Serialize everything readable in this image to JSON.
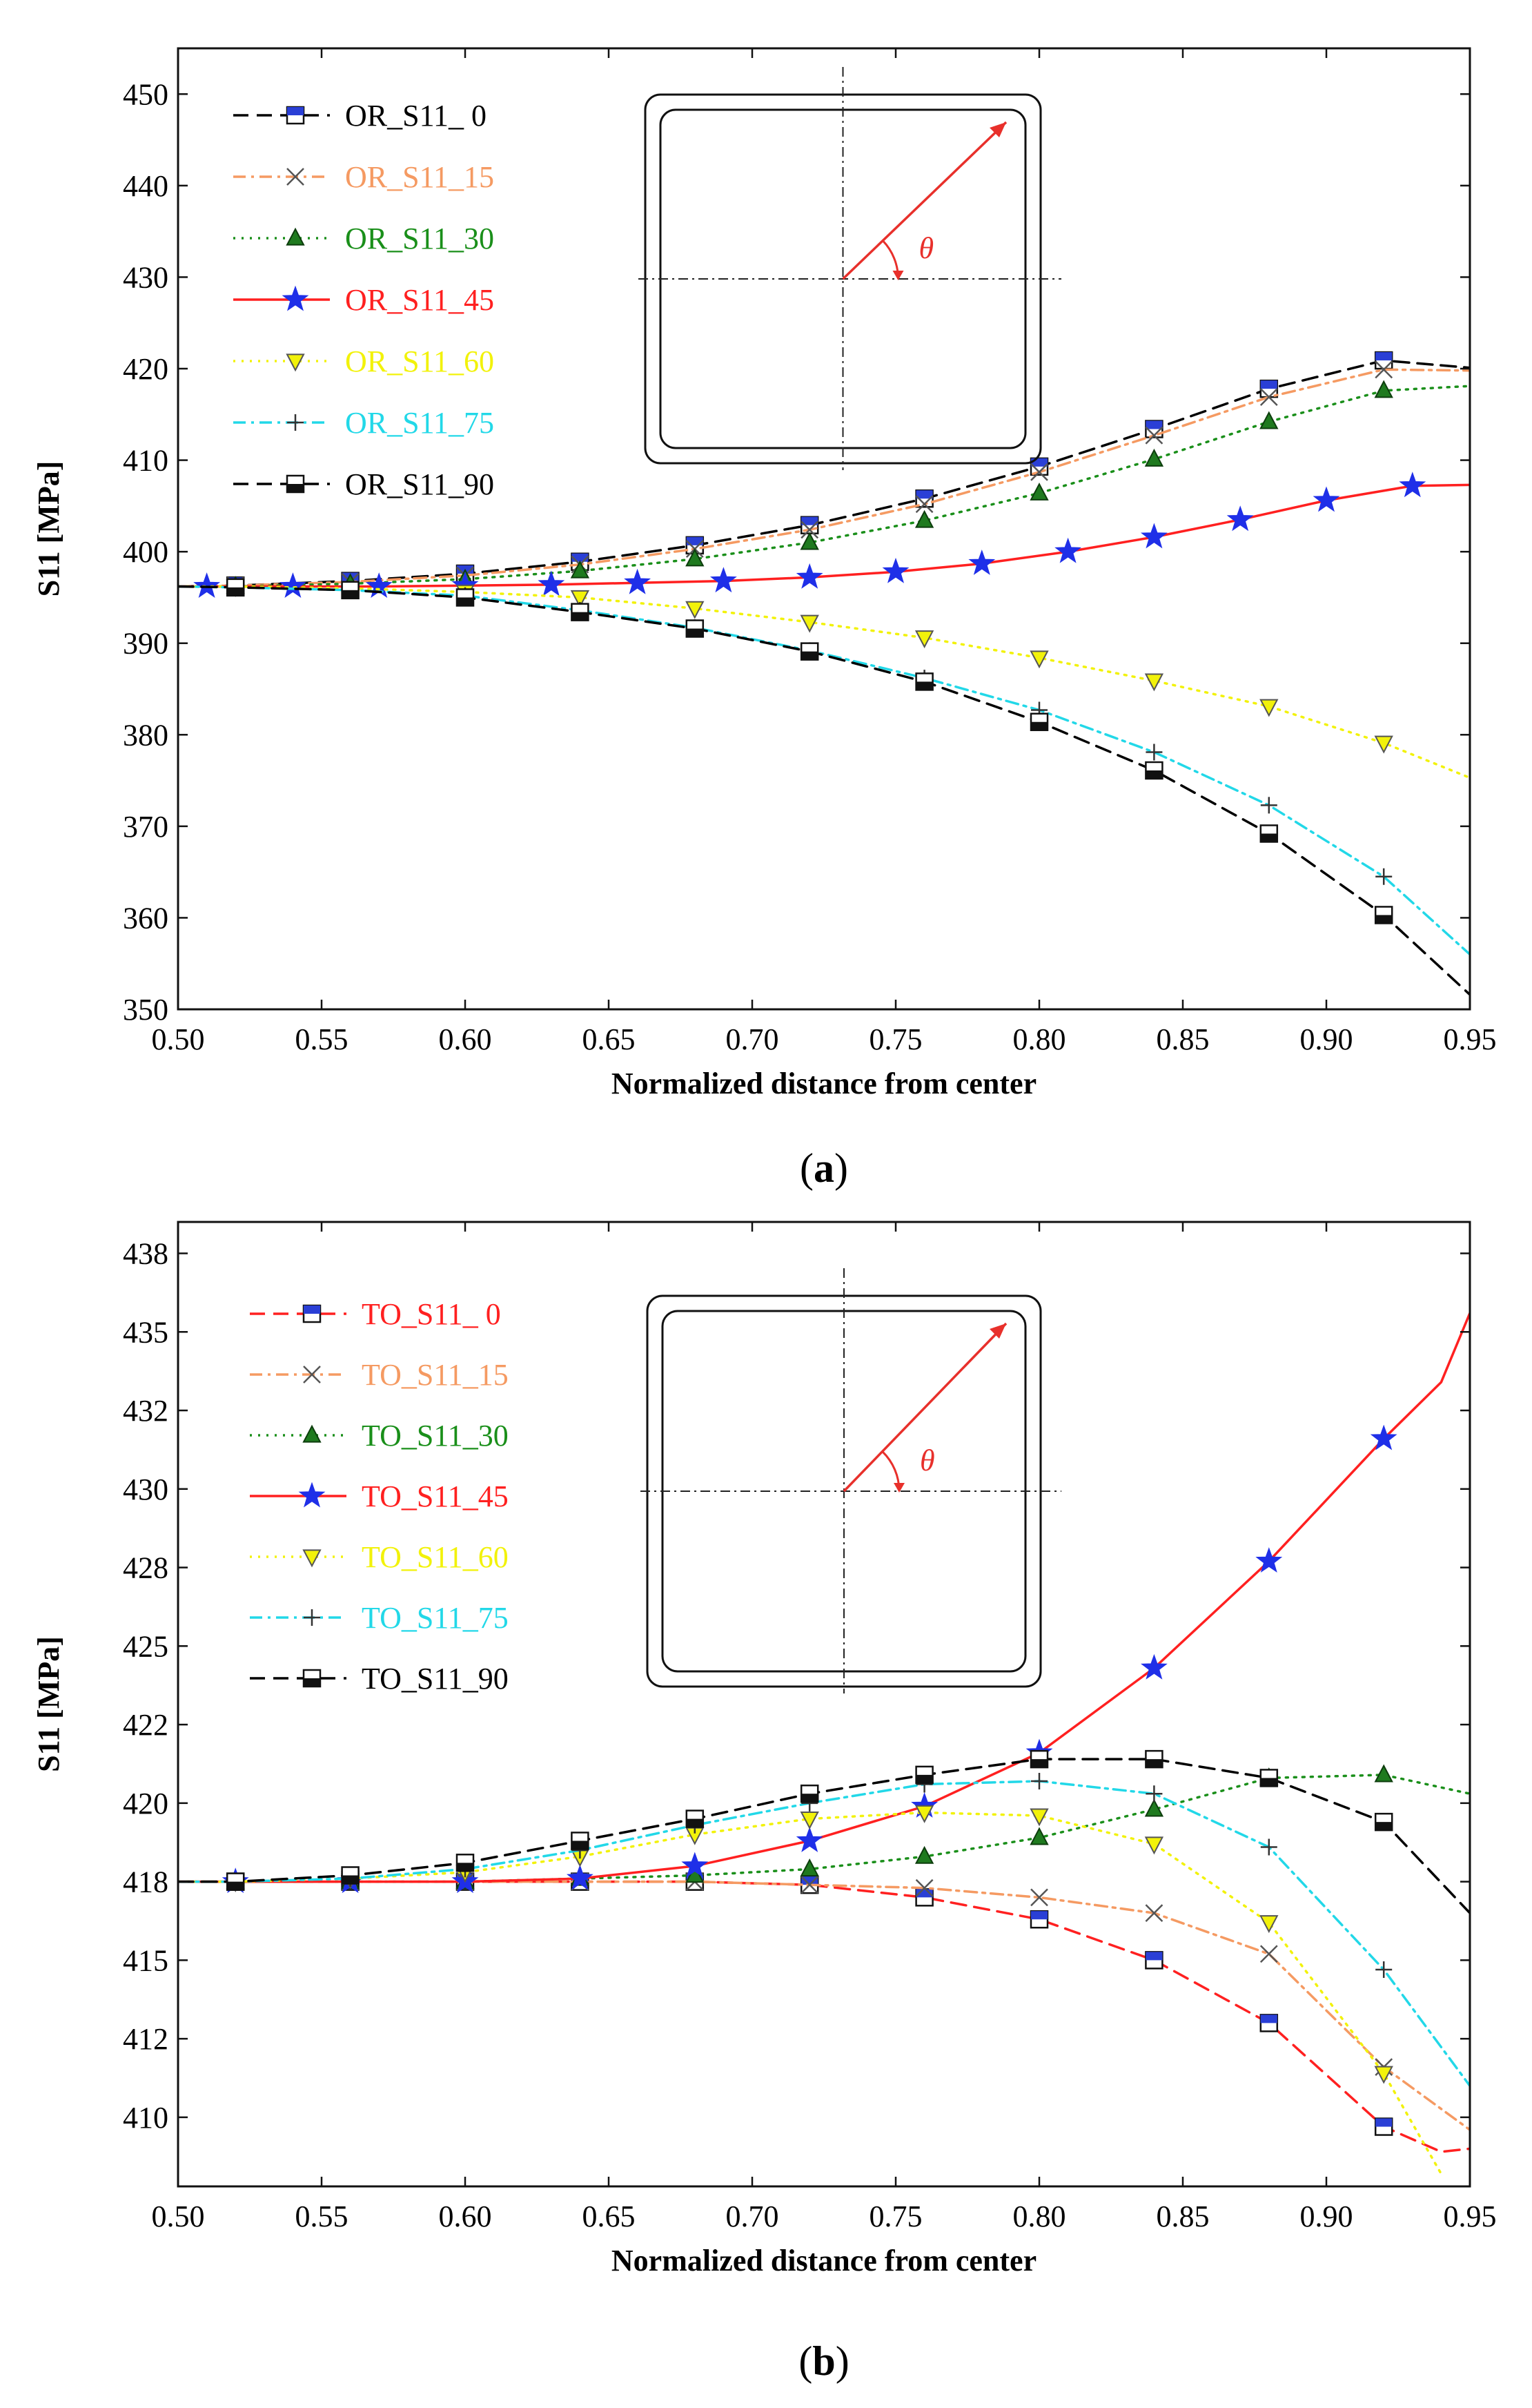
{
  "colors": {
    "s0": "#000000",
    "s15": "#f59a62",
    "s30": "#1a8f1a",
    "s45": "#ff2020",
    "s60": "#f2f20a",
    "s75": "#22d8e8",
    "s90": "#000000",
    "angle_arrow": "#e8302b"
  },
  "chart_data": [
    {
      "type": "line",
      "panel": "a",
      "caption_pre": "(",
      "caption_letter": "a",
      "caption_post": ")",
      "title": "",
      "xlabel": "Normalized distance from center",
      "ylabel": "S11 [MPa]",
      "xlim": [
        0.5,
        0.95
      ],
      "ylim": [
        350,
        455
      ],
      "x_ticks": [
        0.5,
        0.55,
        0.6,
        0.65,
        0.7,
        0.75,
        0.8,
        0.85,
        0.9,
        0.95
      ],
      "x_tick_labels": [
        "0.50",
        "0.55",
        "0.60",
        "0.65",
        "0.70",
        "0.75",
        "0.80",
        "0.85",
        "0.90",
        "0.95"
      ],
      "y_ticks": [
        350,
        360,
        370,
        380,
        390,
        400,
        410,
        420,
        430,
        440,
        450
      ],
      "y_tick_labels": [
        "350",
        "360",
        "370",
        "380",
        "390",
        "400",
        "410",
        "420",
        "430",
        "440",
        "450"
      ],
      "legend_position": "upper-left",
      "inset": {
        "angle_symbol": "θ"
      },
      "series": [
        {
          "key": "s0",
          "name": "OR_S11_ 0",
          "legend_color": "#000000",
          "line_style": "dashed",
          "marker": "square-blue",
          "x": [
            0.5,
            0.52,
            0.56,
            0.6,
            0.64,
            0.68,
            0.72,
            0.76,
            0.8,
            0.84,
            0.88,
            0.92,
            0.95
          ],
          "y": [
            396.2,
            396.3,
            396.8,
            397.6,
            398.9,
            400.7,
            402.9,
            405.8,
            409.3,
            413.4,
            417.8,
            420.9,
            420.1
          ],
          "marker_x": [
            0.52,
            0.56,
            0.6,
            0.64,
            0.68,
            0.72,
            0.76,
            0.8,
            0.84,
            0.88,
            0.92
          ],
          "marker_y": [
            396.3,
            396.8,
            397.6,
            398.9,
            400.7,
            402.9,
            405.8,
            409.3,
            413.4,
            417.8,
            420.9
          ]
        },
        {
          "key": "s15",
          "name": "OR_S11_15",
          "legend_color": "#f59a62",
          "line_style": "dashdot",
          "marker": "x",
          "x": [
            0.5,
            0.52,
            0.56,
            0.6,
            0.64,
            0.68,
            0.72,
            0.76,
            0.8,
            0.84,
            0.88,
            0.92,
            0.95
          ],
          "y": [
            396.2,
            396.3,
            396.7,
            397.4,
            398.6,
            400.3,
            402.4,
            405.2,
            408.7,
            412.7,
            416.9,
            419.9,
            419.8
          ],
          "marker_x": [
            0.52,
            0.56,
            0.6,
            0.64,
            0.68,
            0.72,
            0.76,
            0.8,
            0.84,
            0.88,
            0.92
          ],
          "marker_y": [
            396.3,
            396.7,
            397.4,
            398.6,
            400.3,
            402.4,
            405.2,
            408.7,
            412.7,
            416.9,
            419.9
          ]
        },
        {
          "key": "s30",
          "name": "OR_S11_30",
          "legend_color": "#1a8f1a",
          "line_style": "dotted",
          "marker": "triangle-up-green",
          "x": [
            0.5,
            0.52,
            0.56,
            0.6,
            0.64,
            0.68,
            0.72,
            0.76,
            0.8,
            0.84,
            0.88,
            0.92,
            0.95
          ],
          "y": [
            396.2,
            396.2,
            396.5,
            397.0,
            397.9,
            399.2,
            401.0,
            403.4,
            406.4,
            410.1,
            414.2,
            417.6,
            418.1
          ],
          "marker_x": [
            0.52,
            0.56,
            0.6,
            0.64,
            0.68,
            0.72,
            0.76,
            0.8,
            0.84,
            0.88,
            0.92
          ],
          "marker_y": [
            396.2,
            396.5,
            397.0,
            397.9,
            399.2,
            401.0,
            403.4,
            406.4,
            410.1,
            414.2,
            417.6
          ]
        },
        {
          "key": "s45",
          "name": "OR_S11_45",
          "legend_color": "#ff2020",
          "line_style": "solid",
          "marker": "star-blue",
          "x": [
            0.5,
            0.51,
            0.54,
            0.57,
            0.6,
            0.63,
            0.66,
            0.69,
            0.72,
            0.75,
            0.78,
            0.81,
            0.84,
            0.87,
            0.9,
            0.93,
            0.95
          ],
          "y": [
            396.2,
            396.2,
            396.2,
            396.2,
            396.3,
            396.4,
            396.6,
            396.8,
            397.2,
            397.8,
            398.7,
            400.0,
            401.6,
            403.5,
            405.6,
            407.2,
            407.3
          ],
          "marker_x": [
            0.51,
            0.54,
            0.57,
            0.6,
            0.63,
            0.66,
            0.69,
            0.72,
            0.75,
            0.78,
            0.81,
            0.84,
            0.87,
            0.9,
            0.93
          ],
          "marker_y": [
            396.2,
            396.2,
            396.2,
            396.3,
            396.4,
            396.6,
            396.8,
            397.2,
            397.8,
            398.7,
            400.0,
            401.6,
            403.5,
            405.6,
            407.2
          ]
        },
        {
          "key": "s60",
          "name": "OR_S11_60",
          "legend_color": "#f2f20a",
          "line_style": "dotted",
          "marker": "triangle-down-yellow",
          "x": [
            0.5,
            0.52,
            0.56,
            0.6,
            0.64,
            0.68,
            0.72,
            0.76,
            0.8,
            0.84,
            0.88,
            0.92,
            0.95
          ],
          "y": [
            396.2,
            396.2,
            396.0,
            395.6,
            395.0,
            393.8,
            392.3,
            390.6,
            388.4,
            385.9,
            383.1,
            379.1,
            375.3
          ],
          "marker_x": [
            0.52,
            0.56,
            0.6,
            0.64,
            0.68,
            0.72,
            0.76,
            0.8,
            0.84,
            0.88,
            0.92
          ],
          "marker_y": [
            396.2,
            396.0,
            395.6,
            395.0,
            393.8,
            392.3,
            390.6,
            388.4,
            385.9,
            383.1,
            379.1
          ]
        },
        {
          "key": "s75",
          "name": "OR_S11_75",
          "legend_color": "#22d8e8",
          "line_style": "dashdot",
          "marker": "plus",
          "x": [
            0.5,
            0.52,
            0.56,
            0.6,
            0.64,
            0.68,
            0.72,
            0.76,
            0.8,
            0.84,
            0.88,
            0.92,
            0.95
          ],
          "y": [
            396.2,
            396.1,
            395.8,
            395.2,
            393.6,
            391.7,
            389.2,
            386.2,
            382.7,
            378.1,
            372.3,
            364.5,
            356.0
          ],
          "marker_x": [
            0.52,
            0.56,
            0.6,
            0.64,
            0.68,
            0.72,
            0.76,
            0.8,
            0.84,
            0.88,
            0.92
          ],
          "marker_y": [
            396.1,
            395.8,
            395.2,
            393.6,
            391.7,
            389.2,
            386.2,
            382.7,
            378.1,
            372.3,
            364.5
          ]
        },
        {
          "key": "s90",
          "name": "OR_S11_90",
          "legend_color": "#000000",
          "line_style": "dashed",
          "marker": "square-black",
          "x": [
            0.5,
            0.52,
            0.56,
            0.6,
            0.64,
            0.68,
            0.72,
            0.76,
            0.8,
            0.84,
            0.88,
            0.92,
            0.95
          ],
          "y": [
            396.2,
            396.1,
            395.8,
            395.0,
            393.4,
            391.6,
            389.1,
            385.8,
            381.4,
            376.1,
            369.2,
            360.3,
            351.6
          ],
          "marker_x": [
            0.52,
            0.56,
            0.6,
            0.64,
            0.68,
            0.72,
            0.76,
            0.8,
            0.84,
            0.88,
            0.92
          ],
          "marker_y": [
            396.1,
            395.8,
            395.0,
            393.4,
            391.6,
            389.1,
            385.8,
            381.4,
            376.1,
            369.2,
            360.3
          ]
        }
      ]
    },
    {
      "type": "line",
      "panel": "b",
      "caption_pre": "(",
      "caption_letter": "b",
      "caption_post": ")",
      "title": "",
      "xlabel": "Normalized distance from center",
      "ylabel": "S11 [MPa]",
      "xlim": [
        0.5,
        0.95
      ],
      "ylim": [
        407.8,
        438.5
      ],
      "x_ticks": [
        0.5,
        0.55,
        0.6,
        0.65,
        0.7,
        0.75,
        0.8,
        0.85,
        0.9,
        0.95
      ],
      "x_tick_labels": [
        "0.50",
        "0.55",
        "0.60",
        "0.65",
        "0.70",
        "0.75",
        "0.80",
        "0.85",
        "0.90",
        "0.95"
      ],
      "y_ticks": [
        410,
        412.5,
        415,
        417.5,
        420,
        422.5,
        425,
        427.5,
        430,
        432.5,
        435,
        437.5
      ],
      "y_tick_labels": [
        "410",
        "412",
        "415",
        "418",
        "420",
        "422",
        "425",
        "428",
        "430",
        "432",
        "435",
        "438"
      ],
      "legend_position": "upper-left",
      "inset": {
        "angle_symbol": "θ"
      },
      "series": [
        {
          "key": "s0",
          "name": "TO_S11_ 0",
          "legend_color": "#ff2020",
          "line_style": "dashed",
          "marker": "square-blue",
          "x": [
            0.5,
            0.52,
            0.56,
            0.6,
            0.64,
            0.68,
            0.72,
            0.76,
            0.8,
            0.84,
            0.88,
            0.92,
            0.94,
            0.95
          ],
          "y": [
            417.5,
            417.5,
            417.5,
            417.5,
            417.5,
            417.5,
            417.4,
            417.0,
            416.3,
            415.0,
            413.0,
            409.7,
            408.9,
            409.0
          ],
          "marker_x": [
            0.52,
            0.56,
            0.6,
            0.64,
            0.68,
            0.72,
            0.76,
            0.8,
            0.84,
            0.88,
            0.92
          ],
          "marker_y": [
            417.5,
            417.5,
            417.5,
            417.5,
            417.5,
            417.4,
            417.0,
            416.3,
            415.0,
            413.0,
            409.7
          ]
        },
        {
          "key": "s15",
          "name": "TO_S11_15",
          "legend_color": "#f59a62",
          "line_style": "dashdot",
          "marker": "x",
          "x": [
            0.5,
            0.52,
            0.56,
            0.6,
            0.64,
            0.68,
            0.72,
            0.76,
            0.8,
            0.84,
            0.88,
            0.92,
            0.95
          ],
          "y": [
            417.5,
            417.5,
            417.5,
            417.5,
            417.5,
            417.5,
            417.4,
            417.3,
            417.0,
            416.5,
            415.2,
            411.6,
            409.6
          ],
          "marker_x": [
            0.52,
            0.56,
            0.6,
            0.64,
            0.68,
            0.72,
            0.76,
            0.8,
            0.84,
            0.88,
            0.92
          ],
          "marker_y": [
            417.5,
            417.5,
            417.5,
            417.5,
            417.5,
            417.4,
            417.3,
            417.0,
            416.5,
            415.2,
            411.6
          ]
        },
        {
          "key": "s30",
          "name": "TO_S11_30",
          "legend_color": "#1a8f1a",
          "line_style": "dotted",
          "marker": "triangle-up-green",
          "x": [
            0.5,
            0.52,
            0.56,
            0.6,
            0.64,
            0.68,
            0.72,
            0.76,
            0.8,
            0.84,
            0.88,
            0.92,
            0.95
          ],
          "y": [
            417.5,
            417.5,
            417.5,
            417.5,
            417.6,
            417.7,
            417.9,
            418.3,
            418.9,
            419.8,
            420.8,
            420.9,
            420.3
          ],
          "marker_x": [
            0.52,
            0.56,
            0.6,
            0.64,
            0.68,
            0.72,
            0.76,
            0.8,
            0.84,
            0.88,
            0.92
          ],
          "marker_y": [
            417.5,
            417.5,
            417.5,
            417.6,
            417.7,
            417.9,
            418.3,
            418.9,
            419.8,
            420.8,
            420.9
          ]
        },
        {
          "key": "s45",
          "name": "TO_S11_45",
          "legend_color": "#ff2020",
          "line_style": "solid",
          "marker": "star-blue",
          "x": [
            0.5,
            0.52,
            0.56,
            0.6,
            0.64,
            0.68,
            0.72,
            0.76,
            0.8,
            0.84,
            0.88,
            0.92,
            0.94,
            0.95
          ],
          "y": [
            417.5,
            417.5,
            417.5,
            417.5,
            417.6,
            418.0,
            418.8,
            419.9,
            421.6,
            424.3,
            427.7,
            431.6,
            433.4,
            435.6
          ],
          "marker_x": [
            0.52,
            0.56,
            0.6,
            0.64,
            0.68,
            0.72,
            0.76,
            0.8,
            0.84,
            0.88,
            0.92
          ],
          "marker_y": [
            417.5,
            417.5,
            417.5,
            417.6,
            418.0,
            418.8,
            419.9,
            421.6,
            424.3,
            427.7,
            431.6
          ]
        },
        {
          "key": "s60",
          "name": "TO_S11_60",
          "legend_color": "#f2f20a",
          "line_style": "dotted",
          "marker": "triangle-down-yellow",
          "x": [
            0.5,
            0.52,
            0.56,
            0.6,
            0.64,
            0.68,
            0.72,
            0.76,
            0.8,
            0.84,
            0.88,
            0.92,
            0.94
          ],
          "y": [
            417.5,
            417.5,
            417.6,
            417.8,
            418.3,
            419.0,
            419.5,
            419.7,
            419.6,
            418.7,
            416.2,
            411.4,
            408.2
          ],
          "marker_x": [
            0.52,
            0.56,
            0.6,
            0.64,
            0.68,
            0.72,
            0.76,
            0.8,
            0.84,
            0.88,
            0.92
          ],
          "marker_y": [
            417.5,
            417.6,
            417.8,
            418.3,
            419.0,
            419.5,
            419.7,
            419.6,
            418.7,
            416.2,
            411.4
          ]
        },
        {
          "key": "s75",
          "name": "TO_S11_75",
          "legend_color": "#22d8e8",
          "line_style": "dashdot",
          "marker": "plus",
          "x": [
            0.5,
            0.52,
            0.56,
            0.6,
            0.64,
            0.68,
            0.72,
            0.76,
            0.8,
            0.84,
            0.88,
            0.92,
            0.95
          ],
          "y": [
            417.5,
            417.5,
            417.6,
            417.9,
            418.5,
            419.3,
            420.0,
            420.6,
            420.7,
            420.3,
            418.6,
            414.7,
            411.0
          ],
          "marker_x": [
            0.52,
            0.56,
            0.6,
            0.64,
            0.68,
            0.72,
            0.76,
            0.8,
            0.84,
            0.88,
            0.92
          ],
          "marker_y": [
            417.5,
            417.6,
            417.9,
            418.5,
            419.3,
            420.0,
            420.6,
            420.7,
            420.3,
            418.6,
            414.7
          ]
        },
        {
          "key": "s90",
          "name": "TO_S11_90",
          "legend_color": "#000000",
          "line_style": "dashed",
          "marker": "square-black",
          "x": [
            0.5,
            0.52,
            0.56,
            0.6,
            0.64,
            0.68,
            0.72,
            0.76,
            0.8,
            0.84,
            0.88,
            0.92,
            0.95
          ],
          "y": [
            417.5,
            417.5,
            417.7,
            418.1,
            418.8,
            419.5,
            420.3,
            420.9,
            421.4,
            421.4,
            420.8,
            419.4,
            416.5
          ],
          "marker_x": [
            0.52,
            0.56,
            0.6,
            0.64,
            0.68,
            0.72,
            0.76,
            0.8,
            0.84,
            0.88,
            0.92
          ],
          "marker_y": [
            417.5,
            417.7,
            418.1,
            418.8,
            419.5,
            420.3,
            420.9,
            421.4,
            421.4,
            420.8,
            419.4
          ]
        }
      ]
    }
  ]
}
